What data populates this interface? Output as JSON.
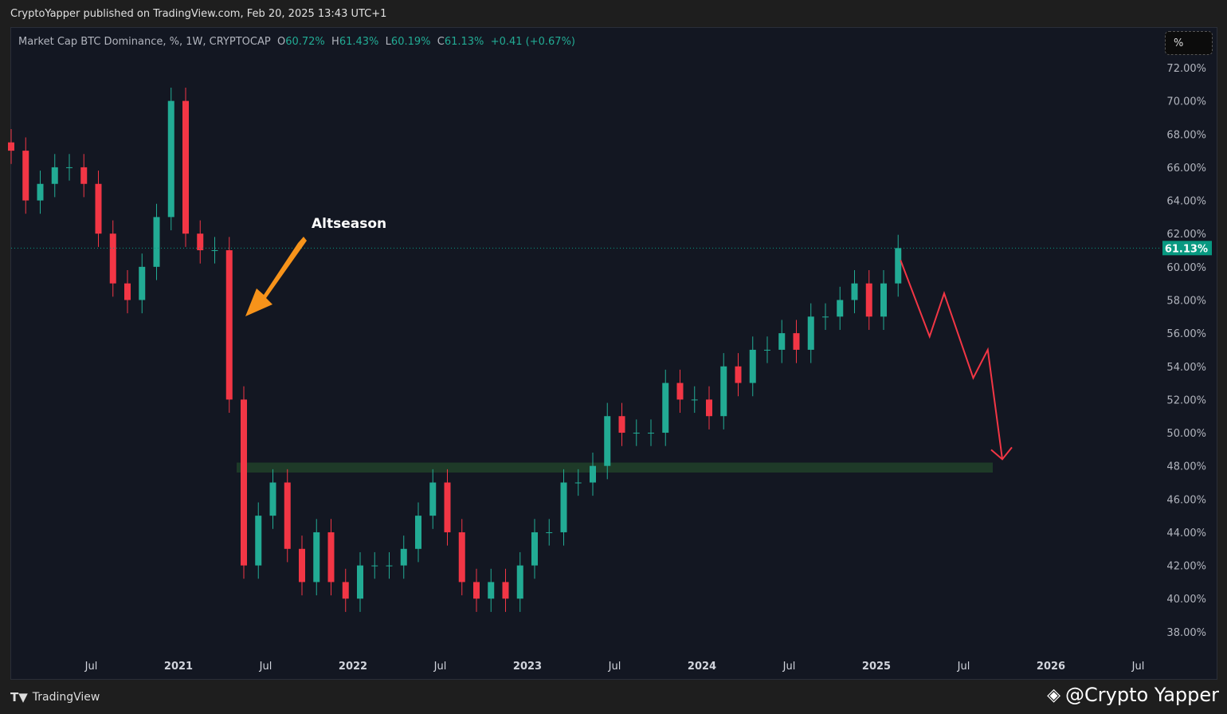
{
  "header": {
    "published": "CryptoYapper published on TradingView.com, Feb 20, 2025 13:43 UTC+1"
  },
  "legend": {
    "symbol": "Market Cap BTC Dominance, %, 1W, CRYPTOCAP",
    "o_label": "O",
    "o": "60.72%",
    "h_label": "H",
    "h": "61.43%",
    "l_label": "L",
    "l": "60.19%",
    "c_label": "C",
    "c": "61.13%",
    "change": "+0.41 (+0.67%)"
  },
  "unit_button": "%",
  "footer": {
    "brand": "TradingView",
    "watermark": "@Crypto Yapper"
  },
  "colors": {
    "up": "#22ab94",
    "down": "#f23645",
    "zone": "#1e3a28",
    "projection": "#f23645",
    "annotation": "#f7931a",
    "price_tag": "#089981"
  },
  "chart_data": {
    "type": "candlestick",
    "title": "Market Cap BTC Dominance, %, 1W, CRYPTOCAP",
    "ylim": [
      37,
      73
    ],
    "yticks": [
      "72.00%",
      "70.00%",
      "68.00%",
      "66.00%",
      "64.00%",
      "62.00%",
      "60.00%",
      "58.00%",
      "56.00%",
      "54.00%",
      "52.00%",
      "50.00%",
      "48.00%",
      "46.00%",
      "44.00%",
      "42.00%",
      "40.00%",
      "38.00%"
    ],
    "xticks": [
      "Jul",
      "2021",
      "Jul",
      "2022",
      "Jul",
      "2023",
      "Jul",
      "2024",
      "Jul",
      "2025",
      "Jul",
      "2026",
      "Jul"
    ],
    "current_price": "61.13%",
    "monthly_closes_start": "2020-01",
    "closes": [
      67,
      64,
      65,
      66,
      66,
      65,
      62,
      59,
      58,
      60,
      63,
      70,
      62,
      61,
      61,
      52,
      42,
      45,
      47,
      43,
      41,
      44,
      41,
      40,
      42,
      42,
      42,
      43,
      45,
      47,
      44,
      41,
      40,
      41,
      40,
      42,
      44,
      44,
      47,
      47,
      48,
      51,
      50,
      50,
      50,
      53,
      52,
      52,
      51,
      54,
      53,
      55,
      55,
      56,
      55,
      57,
      57,
      58,
      59,
      57,
      59,
      61.13
    ],
    "support_zone": {
      "from": "2021-05",
      "to": "2025-09",
      "low": 47.6,
      "high": 48.2
    },
    "projection": [
      {
        "date": "2025-02",
        "value": 60.4
      },
      {
        "date": "2025-04",
        "value": 55.8
      },
      {
        "date": "2025-05",
        "value": 58.4
      },
      {
        "date": "2025-07",
        "value": 53.3
      },
      {
        "date": "2025-08",
        "value": 55.0
      },
      {
        "date": "2025-09",
        "value": 48.4
      }
    ],
    "annotation": {
      "text": "Altseason",
      "points_to": "2021-05"
    }
  }
}
